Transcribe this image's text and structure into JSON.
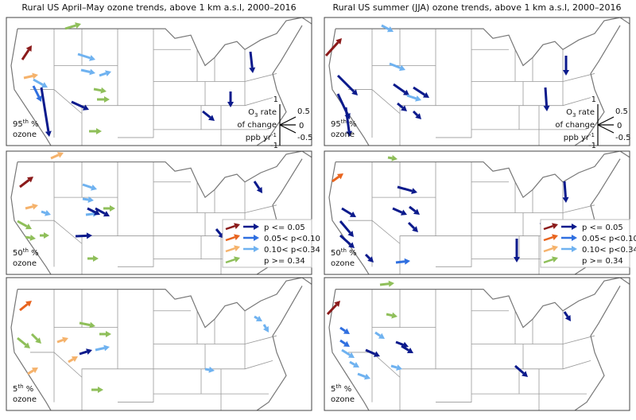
{
  "columns": [
    {
      "title": "Rural US April–May ozone trends, above 1 km a.s.l, 2000–2016",
      "panels": [
        {
          "percentile": "95",
          "suffix": "th",
          "unit": " %",
          "label": "ozone"
        },
        {
          "percentile": "50",
          "suffix": "th",
          "unit": " %",
          "label": "ozone"
        },
        {
          "percentile": "5",
          "suffix": "th",
          "unit": " %",
          "label": "ozone"
        }
      ]
    },
    {
      "title": "Rural US summer (JJA) ozone trends, above 1 km a.s.l, 2000–2016",
      "panels": [
        {
          "percentile": "95",
          "suffix": "th",
          "unit": " %",
          "label": "ozone"
        },
        {
          "percentile": "50",
          "suffix": "th",
          "unit": " %",
          "label": "ozone"
        },
        {
          "percentile": "5",
          "suffix": "th",
          "unit": " %",
          "label": "ozone"
        }
      ]
    }
  ],
  "rate_key": {
    "o": "O",
    "sub": "3",
    "rate": " rate",
    "line2": "of change",
    "unit": "ppb yr",
    "sup": "-1",
    "labels": [
      "1",
      "0.5",
      "0",
      "-1",
      "-0.5"
    ]
  },
  "legend": {
    "items": [
      "p <= 0.05",
      "0.05< p<0.10",
      "0.10< p<0.34",
      "p >= 0.34"
    ]
  }
}
